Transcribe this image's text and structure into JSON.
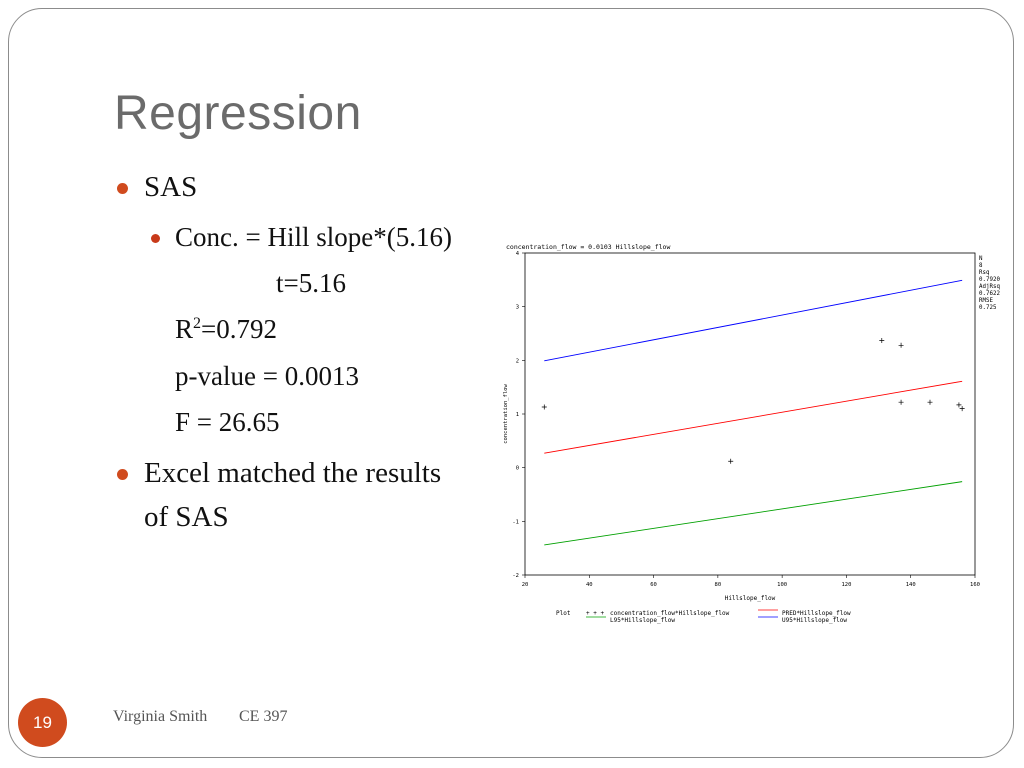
{
  "slide": {
    "title": "Regression",
    "page_number": "19",
    "footer_author": "Virginia Smith",
    "footer_course": "CE 397"
  },
  "bullets": {
    "sas": "SAS",
    "equation": "Conc. = Hill slope*(5.16)",
    "t_stat": "t=5.16",
    "r2_prefix": "R",
    "r2_sup": "2",
    "r2_value": "=0.792",
    "p_value": "p-value = 0.0013",
    "f_stat": "F = 26.65",
    "excel_line1": "Excel matched the results",
    "excel_line2": "of SAS"
  },
  "chart_data": {
    "type": "scatter",
    "title": "concentration_flow = 0.0103 Hillslope_flow",
    "xlabel": "Hillslope_flow",
    "ylabel": "concentration_flow",
    "xlim": [
      20,
      160
    ],
    "ylim": [
      -2,
      4
    ],
    "x_ticks": [
      20,
      40,
      60,
      80,
      100,
      120,
      140,
      160
    ],
    "y_ticks": [
      -2,
      -1,
      0,
      1,
      2,
      3,
      4
    ],
    "points": [
      {
        "x": 26,
        "y": 1.13
      },
      {
        "x": 84,
        "y": 0.12
      },
      {
        "x": 131,
        "y": 2.37
      },
      {
        "x": 137,
        "y": 2.28
      },
      {
        "x": 137,
        "y": 1.22
      },
      {
        "x": 146,
        "y": 1.22
      },
      {
        "x": 155,
        "y": 1.17
      },
      {
        "x": 156,
        "y": 1.1
      }
    ],
    "lines": [
      {
        "name": "PRED*Hillslope_flow",
        "color": "#ff0000",
        "x": [
          26,
          156
        ],
        "y": [
          0.27,
          1.61
        ]
      },
      {
        "name": "U95*Hillslope_flow",
        "color": "#0000ff",
        "x": [
          26,
          156
        ],
        "y": [
          1.99,
          3.49
        ]
      },
      {
        "name": "L95*Hillslope_flow",
        "color": "#00a000",
        "x": [
          26,
          156
        ],
        "y": [
          -1.44,
          -0.26
        ]
      }
    ],
    "stats": [
      {
        "label": "N",
        "value": "8"
      },
      {
        "label": "Rsq",
        "value": "0.7920"
      },
      {
        "label": "AdjRsq",
        "value": "0.7622"
      },
      {
        "label": "RMSE",
        "value": "0.725"
      }
    ],
    "legend": {
      "prefix": "Plot",
      "points_symbol": "+ + +",
      "points_label": "concentration_flow*Hillslope_flow",
      "pred_label": "PRED*Hillslope_flow",
      "l95_label": "L95*Hillslope_flow",
      "u95_label": "U95*Hillslope_flow"
    },
    "legend_position": "bottom",
    "grid": false
  }
}
